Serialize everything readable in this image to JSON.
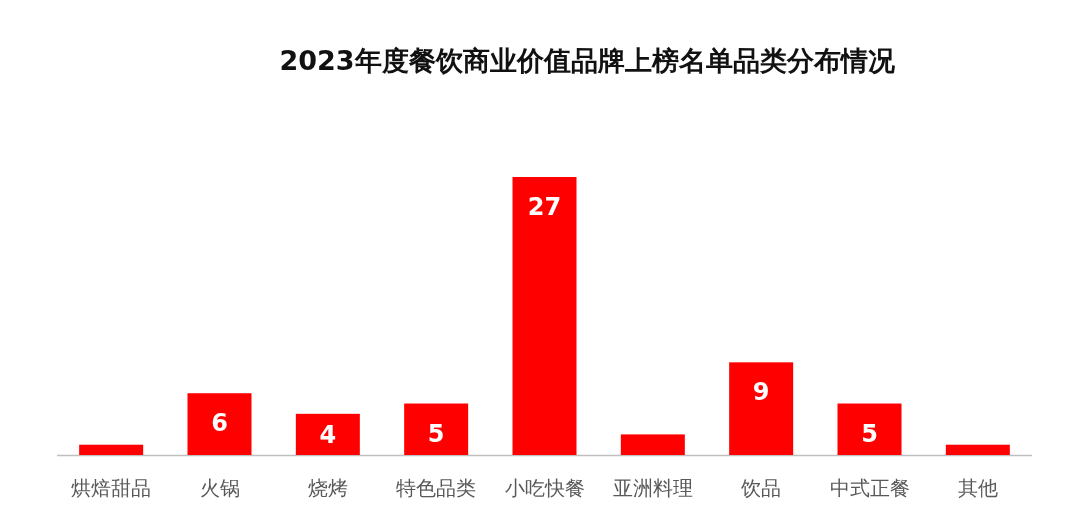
{
  "chart_data": {
    "type": "bar",
    "title": "2023年度餐饮商业价值品牌上榜名单品类分布情况",
    "categories": [
      "烘焙甜品",
      "火锅",
      "烧烤",
      "特色品类",
      "小吃快餐",
      "亚洲料理",
      "饮品",
      "中式正餐",
      "其他"
    ],
    "values": [
      1,
      6,
      4,
      5,
      27,
      2,
      9,
      5,
      1
    ],
    "value_labels": [
      null,
      "6",
      "4",
      "5",
      "27",
      null,
      "9",
      "5",
      null
    ],
    "color": "#ff0000"
  }
}
